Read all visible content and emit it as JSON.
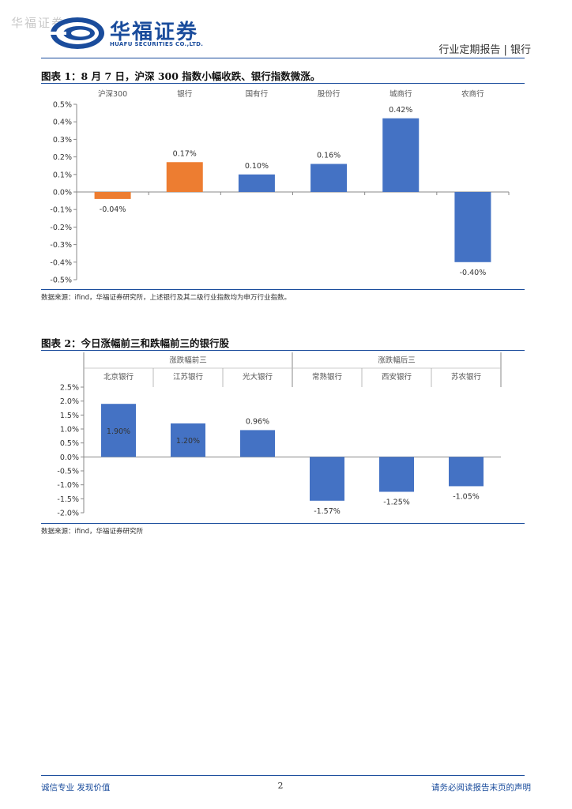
{
  "header": {
    "watermark": "华福证券",
    "logo_cn": "华福证券",
    "logo_en": "HUAFU SECURITIES CO.,LTD.",
    "report_type": "行业定期报告 | 银行"
  },
  "figure1": {
    "title": "图表 1：8 月 7 日，沪深 300 指数小幅收跌、银行指数微涨。",
    "source": "数据来源：ifind，华福证券研究所，上述银行及其二级行业指数均为申万行业指数。"
  },
  "figure2": {
    "title": "图表 2：今日涨幅前三和跌幅前三的银行股",
    "source": "数据来源：ifind，华福证券研究所"
  },
  "footer": {
    "left": "诚信专业  发现价值",
    "page": "2",
    "right": "请务必阅读报告末页的声明"
  },
  "chart_data": [
    {
      "type": "bar",
      "categories": [
        "沪深300",
        "银行",
        "国有行",
        "股份行",
        "城商行",
        "农商行"
      ],
      "values": [
        -0.04,
        0.17,
        0.1,
        0.16,
        0.42,
        -0.4
      ],
      "data_labels": [
        "-0.04%",
        "0.17%",
        "0.10%",
        "0.16%",
        "0.42%",
        "-0.40%"
      ],
      "colors": [
        "#ed7d31",
        "#ed7d31",
        "#4472c4",
        "#4472c4",
        "#4472c4",
        "#4472c4"
      ],
      "yticks": [
        0.5,
        0.4,
        0.3,
        0.2,
        0.1,
        0.0,
        -0.1,
        -0.2,
        -0.3,
        -0.4,
        -0.5
      ],
      "ytick_labels": [
        "0.5%",
        "0.4%",
        "0.3%",
        "0.2%",
        "0.1%",
        "0.0%",
        "-0.1%",
        "-0.2%",
        "-0.3%",
        "-0.4%",
        "-0.5%"
      ],
      "ylim": [
        -0.5,
        0.5
      ],
      "category_position": "top",
      "grid": false
    },
    {
      "type": "bar",
      "groups": [
        {
          "label": "涨跌幅前三",
          "categories": [
            "北京银行",
            "江苏银行",
            "光大银行"
          ]
        },
        {
          "label": "涨跌幅后三",
          "categories": [
            "常熟银行",
            "西安银行",
            "苏农银行"
          ]
        }
      ],
      "categories": [
        "北京银行",
        "江苏银行",
        "光大银行",
        "常熟银行",
        "西安银行",
        "苏农银行"
      ],
      "values": [
        1.9,
        1.2,
        0.96,
        -1.57,
        -1.25,
        -1.05
      ],
      "data_labels": [
        "1.90%",
        "1.20%",
        "0.96%",
        "-1.57%",
        "-1.25%",
        "-1.05%"
      ],
      "colors": [
        "#4472c4",
        "#4472c4",
        "#4472c4",
        "#4472c4",
        "#4472c4",
        "#4472c4"
      ],
      "yticks": [
        2.5,
        2.0,
        1.5,
        1.0,
        0.5,
        0.0,
        -0.5,
        -1.0,
        -1.5,
        -2.0
      ],
      "ytick_labels": [
        "2.5%",
        "2.0%",
        "1.5%",
        "1.0%",
        "0.5%",
        "0.0%",
        "-0.5%",
        "-1.0%",
        "-1.5%",
        "-2.0%"
      ],
      "ylim": [
        -2.0,
        2.5
      ],
      "category_position": "top",
      "grid": false
    }
  ]
}
